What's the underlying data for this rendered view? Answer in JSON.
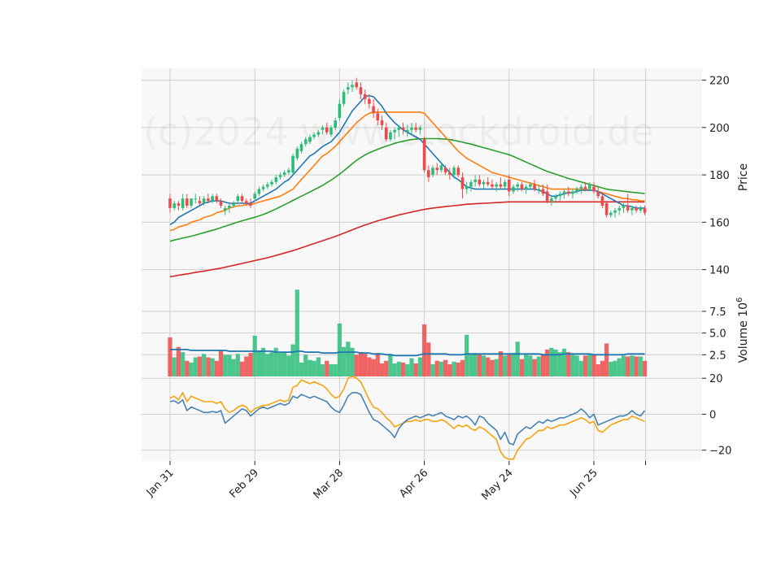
{
  "chart_data": {
    "type": "candlestick",
    "watermark": "(c)2024 www.stockdroid.de",
    "colors": {
      "up": "#2dbd7a",
      "down": "#f04a4a",
      "sma_short": "#1f77b4",
      "sma_mid": "#ff7f0e",
      "sma_long": "#2ca02c",
      "sma_longest": "#d62728",
      "volume_avg": "#1f77b4",
      "osc_main": "#4682b4",
      "osc_signal": "#f5a30f",
      "grid": "#cfcfcf",
      "panel_bg": "#f8f8f8"
    },
    "x_axis": {
      "tick_labels": [
        "Jan 31",
        "Feb 29",
        "Mar 28",
        "Apr 26",
        "May 24",
        "Jun 25"
      ],
      "tick_indices": [
        0,
        20,
        40,
        60,
        80,
        100
      ]
    },
    "price_panel": {
      "ylabel": "Price",
      "ylim": [
        133,
        225
      ],
      "ticks": [
        140,
        160,
        180,
        200,
        220
      ]
    },
    "volume_panel": {
      "ylabel": "Volume  10",
      "ylabel_exponent": "6",
      "ylim": [
        0,
        10.4
      ],
      "ticks": [
        2.5,
        5.0,
        7.5
      ],
      "tick_labels": [
        "2.5",
        "5.0",
        "7.5"
      ]
    },
    "oscillator_panel": {
      "ylim": [
        -26,
        21
      ],
      "ticks": [
        20,
        0,
        -20
      ],
      "tick_labels": [
        "20",
        "0",
        "−20"
      ]
    },
    "ohlc": [
      [
        170,
        172,
        164,
        166
      ],
      [
        166,
        169,
        165,
        168
      ],
      [
        168,
        169,
        165,
        167
      ],
      [
        166,
        172,
        165,
        170
      ],
      [
        170,
        172,
        166,
        167
      ],
      [
        167,
        170,
        166,
        170
      ],
      [
        170,
        172,
        168,
        170
      ],
      [
        169,
        171,
        167,
        168
      ],
      [
        168,
        171,
        167,
        170
      ],
      [
        170,
        172,
        168,
        169
      ],
      [
        169,
        172,
        168,
        171
      ],
      [
        171,
        172,
        168,
        169
      ],
      [
        169,
        170,
        166,
        167
      ],
      [
        165,
        167,
        163,
        166
      ],
      [
        166,
        168,
        164,
        167
      ],
      [
        167,
        169,
        166,
        168
      ],
      [
        169,
        172,
        168,
        171
      ],
      [
        171,
        172,
        168,
        169
      ],
      [
        169,
        170,
        167,
        168
      ],
      [
        168,
        170,
        166,
        167
      ],
      [
        170,
        173,
        169,
        172
      ],
      [
        172,
        175,
        171,
        174
      ],
      [
        174,
        176,
        173,
        175
      ],
      [
        175,
        177,
        174,
        176
      ],
      [
        176,
        178,
        175,
        177
      ],
      [
        177,
        180,
        176,
        179
      ],
      [
        179,
        181,
        178,
        180
      ],
      [
        180,
        182,
        179,
        181
      ],
      [
        181,
        183,
        180,
        182
      ],
      [
        181,
        189,
        180,
        188
      ],
      [
        187,
        192,
        186,
        191
      ],
      [
        190,
        194,
        189,
        193
      ],
      [
        193,
        196,
        192,
        195
      ],
      [
        194,
        197,
        193,
        196
      ],
      [
        196,
        198,
        195,
        197
      ],
      [
        197,
        199,
        196,
        198
      ],
      [
        199,
        201,
        197,
        200
      ],
      [
        200,
        202,
        197,
        198
      ],
      [
        197,
        201,
        196,
        200
      ],
      [
        200,
        204,
        199,
        203
      ],
      [
        204,
        212,
        203,
        210
      ],
      [
        210,
        216,
        209,
        215
      ],
      [
        216,
        219,
        214,
        217
      ],
      [
        217,
        220,
        215,
        218
      ],
      [
        219,
        221,
        216,
        217
      ],
      [
        217,
        219,
        212,
        214
      ],
      [
        214,
        216,
        210,
        212
      ],
      [
        212,
        214,
        208,
        210
      ],
      [
        209,
        212,
        204,
        206
      ],
      [
        206,
        208,
        201,
        203
      ],
      [
        203,
        205,
        199,
        201
      ],
      [
        200,
        202,
        194,
        195
      ],
      [
        195,
        199,
        194,
        198
      ],
      [
        198,
        200,
        195,
        199
      ],
      [
        199,
        201,
        196,
        200
      ],
      [
        200,
        202,
        197,
        199
      ],
      [
        198,
        201,
        196,
        199
      ],
      [
        199,
        202,
        197,
        200
      ],
      [
        200,
        202,
        198,
        199
      ],
      [
        199,
        201,
        197,
        200
      ],
      [
        195,
        196,
        181,
        182
      ],
      [
        182,
        184,
        177,
        179
      ],
      [
        180,
        184,
        179,
        183
      ],
      [
        183,
        185,
        180,
        182
      ],
      [
        182,
        185,
        181,
        184
      ],
      [
        183,
        184,
        180,
        181
      ],
      [
        181,
        183,
        178,
        180
      ],
      [
        180,
        184,
        179,
        183
      ],
      [
        183,
        184,
        179,
        180
      ],
      [
        179,
        181,
        170,
        174
      ],
      [
        174,
        177,
        172,
        175
      ],
      [
        175,
        178,
        173,
        177
      ],
      [
        177,
        180,
        175,
        178
      ],
      [
        178,
        180,
        175,
        176
      ],
      [
        176,
        178,
        174,
        177
      ],
      [
        177,
        179,
        175,
        176
      ],
      [
        176,
        178,
        174,
        175
      ],
      [
        175,
        177,
        173,
        176
      ],
      [
        176,
        179,
        174,
        175
      ],
      [
        175,
        178,
        174,
        177
      ],
      [
        178,
        180,
        171,
        173
      ],
      [
        173,
        176,
        172,
        175
      ],
      [
        175,
        177,
        173,
        176
      ],
      [
        176,
        177,
        173,
        174
      ],
      [
        174,
        176,
        172,
        175
      ],
      [
        175,
        177,
        174,
        176
      ],
      [
        176,
        178,
        173,
        174
      ],
      [
        174,
        176,
        172,
        174
      ],
      [
        174,
        176,
        171,
        172
      ],
      [
        173,
        176,
        168,
        169
      ],
      [
        169,
        171,
        167,
        170
      ],
      [
        170,
        172,
        168,
        171
      ],
      [
        171,
        173,
        169,
        172
      ],
      [
        172,
        174,
        170,
        173
      ],
      [
        173,
        175,
        171,
        172
      ],
      [
        172,
        174,
        170,
        173
      ],
      [
        173,
        175,
        172,
        174
      ],
      [
        174,
        176,
        172,
        175
      ],
      [
        175,
        177,
        173,
        174
      ],
      [
        174,
        177,
        173,
        176
      ],
      [
        175,
        177,
        172,
        173
      ],
      [
        173,
        175,
        170,
        171
      ],
      [
        171,
        172,
        166,
        167
      ],
      [
        168,
        169,
        162,
        163
      ],
      [
        163,
        165,
        162,
        164
      ],
      [
        164,
        166,
        162,
        165
      ],
      [
        165,
        167,
        163,
        166
      ],
      [
        166,
        168,
        164,
        167
      ],
      [
        167,
        172,
        164,
        165
      ],
      [
        165,
        167,
        163,
        166
      ],
      [
        166,
        167,
        164,
        165
      ],
      [
        165,
        167,
        164,
        166
      ],
      [
        166,
        167,
        163,
        164
      ]
    ],
    "volume": [
      4.5,
      2.2,
      3.4,
      2.8,
      1.8,
      1.6,
      2.2,
      2.3,
      2.6,
      2.2,
      2.1,
      1.8,
      3.0,
      2.5,
      2.5,
      2.0,
      2.6,
      1.7,
      2.3,
      2.7,
      4.7,
      3.0,
      3.3,
      2.6,
      2.8,
      3.3,
      2.7,
      2.8,
      2.4,
      3.7,
      10.0,
      1.6,
      2.5,
      1.9,
      1.8,
      2.2,
      1.4,
      1.8,
      1.4,
      1.4,
      6.1,
      3.4,
      4.0,
      3.3,
      2.5,
      2.8,
      2.6,
      2.2,
      2.0,
      2.7,
      1.5,
      1.8,
      2.6,
      1.5,
      1.7,
      1.6,
      1.4,
      2.1,
      1.5,
      2.2,
      6.0,
      3.9,
      1.4,
      1.8,
      1.7,
      1.9,
      1.4,
      1.7,
      1.6,
      1.9,
      4.8,
      2.6,
      2.7,
      2.6,
      2.4,
      2.2,
      1.9,
      2.0,
      2.9,
      2.4,
      2.5,
      2.7,
      4.0,
      2.0,
      2.6,
      2.4,
      2.0,
      2.3,
      2.6,
      3.1,
      3.3,
      3.1,
      2.8,
      3.2,
      2.8,
      2.5,
      2.4,
      1.8,
      2.4,
      2.5,
      2.5,
      1.4,
      1.8,
      3.8,
      1.7,
      1.8,
      2.1,
      2.4,
      2.3,
      2.4,
      2.3,
      2.3,
      1.8
    ],
    "volume_avg": [
      3.1,
      3.1,
      3.1,
      3.1,
      3.1,
      3.0,
      3.0,
      3.0,
      3.0,
      3.0,
      3.0,
      3.0,
      3.0,
      3.0,
      2.9,
      2.9,
      2.9,
      2.9,
      2.9,
      2.9,
      2.9,
      2.9,
      2.9,
      2.9,
      2.9,
      2.8,
      2.8,
      2.8,
      2.8,
      2.8,
      2.9,
      2.9,
      2.8,
      2.8,
      2.8,
      2.8,
      2.7,
      2.7,
      2.7,
      2.7,
      2.8,
      2.8,
      2.8,
      2.8,
      2.8,
      2.7,
      2.7,
      2.7,
      2.6,
      2.6,
      2.6,
      2.5,
      2.5,
      2.4,
      2.4,
      2.4,
      2.4,
      2.4,
      2.4,
      2.5,
      2.6,
      2.6,
      2.6,
      2.6,
      2.6,
      2.6,
      2.5,
      2.5,
      2.5,
      2.5,
      2.6,
      2.6,
      2.6,
      2.6,
      2.6,
      2.6,
      2.6,
      2.6,
      2.6,
      2.6,
      2.6,
      2.6,
      2.6,
      2.6,
      2.6,
      2.6,
      2.6,
      2.6,
      2.5,
      2.5,
      2.5,
      2.5,
      2.5,
      2.6,
      2.6,
      2.6,
      2.6,
      2.6,
      2.6,
      2.6,
      2.5,
      2.5,
      2.5,
      2.5,
      2.5,
      2.5,
      2.5,
      2.5,
      2.6,
      2.6,
      2.6,
      2.6,
      2.6
    ],
    "sma_short": [
      159,
      160,
      162,
      163,
      164,
      165,
      166,
      167,
      168,
      168.5,
      169,
      169,
      169,
      168.5,
      168,
      168,
      168,
      168,
      168,
      168,
      169,
      170,
      171,
      172,
      173,
      174,
      175.5,
      177,
      178,
      180,
      182,
      184,
      186,
      188,
      189,
      190.5,
      192,
      193,
      194,
      196,
      198,
      201,
      204,
      207,
      209,
      211,
      213,
      213.5,
      213,
      211,
      209,
      206,
      204,
      202,
      200.5,
      199,
      198,
      197,
      196,
      195,
      193,
      191,
      189,
      187,
      185,
      183,
      181,
      179,
      178,
      176.5,
      175,
      174.5,
      174,
      174,
      174,
      174,
      174,
      174,
      174,
      174,
      174,
      174,
      174,
      174,
      174,
      174,
      174,
      173.5,
      173,
      172,
      171,
      171,
      171.5,
      172,
      172.5,
      172.5,
      173,
      173.5,
      173.5,
      173.5,
      173.5,
      173,
      172,
      171,
      170,
      169,
      168,
      167,
      167,
      166.5,
      166,
      166,
      166
    ],
    "sma_mid": [
      156.5,
      157,
      158,
      158.5,
      159,
      160,
      160.5,
      161,
      162,
      162.5,
      163,
      164,
      164.5,
      165,
      166,
      166.5,
      167,
      167,
      167.5,
      167.5,
      168,
      168.5,
      169,
      169.5,
      170,
      170.5,
      171,
      172,
      173,
      174,
      176,
      178,
      180,
      182,
      184,
      186,
      188,
      189,
      190.5,
      192,
      194,
      196,
      198,
      200,
      202,
      203.5,
      205,
      206,
      206.5,
      206.5,
      206.5,
      206.5,
      206.5,
      206.5,
      206.5,
      206.5,
      206.5,
      206.5,
      206.5,
      206.5,
      206,
      204,
      202,
      200,
      198,
      196,
      194,
      192,
      190,
      188.5,
      187,
      186,
      185,
      184,
      183,
      182,
      181,
      180.5,
      180,
      179.5,
      179,
      178.5,
      178,
      177.5,
      177,
      176.5,
      176,
      175.5,
      175,
      174.5,
      174,
      174,
      174,
      174,
      174,
      174,
      174,
      174,
      174,
      173.5,
      173.5,
      173,
      172.5,
      172,
      171.5,
      171,
      170.5,
      170,
      170,
      169.5,
      169.5,
      169,
      169
    ],
    "sma_long": [
      152,
      152.5,
      152.9,
      153.3,
      153.7,
      154.1,
      154.6,
      155.1,
      155.6,
      156.1,
      156.6,
      157.1,
      157.7,
      158.3,
      158.9,
      159.5,
      160.1,
      160.6,
      161.1,
      161.6,
      162.1,
      162.7,
      163.3,
      164,
      164.8,
      165.6,
      166.5,
      167.4,
      168.3,
      169.2,
      170.1,
      171,
      171.9,
      172.8,
      173.7,
      174.6,
      175.6,
      176.7,
      177.8,
      179,
      180.3,
      181.7,
      183.2,
      184.7,
      186.1,
      187.3,
      188.4,
      189.3,
      190.1,
      190.8,
      191.5,
      192.1,
      192.7,
      193.3,
      193.8,
      194.2,
      194.6,
      194.9,
      195.1,
      195.2,
      195.3,
      195.3,
      195.3,
      195.3,
      195.2,
      195.1,
      194.9,
      194.6,
      194.2,
      193.8,
      193.4,
      193,
      192.5,
      192,
      191.5,
      191,
      190.5,
      190,
      189.5,
      189,
      188.5,
      187.8,
      187,
      186.2,
      185.4,
      184.6,
      183.8,
      183,
      182.2,
      181.5,
      180.9,
      180.3,
      179.7,
      179.1,
      178.5,
      178,
      177.5,
      177,
      176.5,
      176,
      175.5,
      175,
      174.5,
      174,
      173.7,
      173.5,
      173.3,
      173.1,
      172.9,
      172.7,
      172.5,
      172.3,
      172.1
    ],
    "sma_longest": [
      137,
      137.3,
      137.6,
      137.9,
      138.2,
      138.5,
      138.8,
      139.1,
      139.4,
      139.7,
      140,
      140.3,
      140.6,
      141,
      141.4,
      141.8,
      142.2,
      142.6,
      143,
      143.4,
      143.8,
      144.2,
      144.6,
      145,
      145.5,
      146,
      146.5,
      147,
      147.5,
      148,
      148.6,
      149.2,
      149.8,
      150.4,
      151,
      151.6,
      152.2,
      152.8,
      153.4,
      154,
      154.7,
      155.4,
      156.1,
      156.8,
      157.5,
      158.2,
      158.8,
      159.4,
      160,
      160.6,
      161.1,
      161.6,
      162.1,
      162.6,
      163.1,
      163.5,
      163.9,
      164.3,
      164.7,
      165.1,
      165.4,
      165.7,
      166,
      166.2,
      166.4,
      166.6,
      166.8,
      167,
      167.2,
      167.4,
      167.6,
      167.7,
      167.8,
      167.9,
      168,
      168.1,
      168.2,
      168.3,
      168.4,
      168.5,
      168.6,
      168.6,
      168.6,
      168.6,
      168.6,
      168.6,
      168.6,
      168.6,
      168.6,
      168.6,
      168.6,
      168.6,
      168.6,
      168.6,
      168.6,
      168.6,
      168.6,
      168.6,
      168.6,
      168.6,
      168.6,
      168.6,
      168.6,
      168.6,
      168.6,
      168.6,
      168.6,
      168.6,
      168.6,
      168.6,
      168.6,
      168.6,
      168.6
    ],
    "osc_main": [
      7,
      7.5,
      6,
      8,
      2,
      4,
      3,
      2,
      1,
      1,
      1.5,
      1,
      2,
      -5,
      -3,
      -1,
      1,
      3,
      2,
      -1,
      1,
      3,
      4,
      3,
      4,
      5,
      6,
      5,
      6,
      10,
      9,
      11,
      10,
      9,
      10,
      9,
      8,
      7,
      4,
      2,
      1,
      5,
      10,
      12,
      12,
      11,
      6,
      1,
      -3,
      -4,
      -6,
      -8,
      -10,
      -13,
      -8,
      -5,
      -3,
      -2,
      -1,
      -2,
      -1,
      0,
      -1,
      0,
      1,
      -1,
      -2,
      -3,
      -1,
      -2,
      -1,
      -3,
      -6,
      -1,
      -2,
      -5,
      -7,
      -9,
      -14,
      -10,
      -16,
      -17,
      -11,
      -9,
      -7,
      -8,
      -6,
      -4,
      -5,
      -3,
      -4,
      -3,
      -2,
      -2,
      -1,
      0,
      1,
      3,
      1,
      -2,
      0,
      -6,
      -5,
      -4,
      -3,
      -2,
      -1,
      -1,
      0,
      2,
      0,
      -1,
      2
    ],
    "osc_signal": [
      9,
      10,
      8,
      12,
      7,
      10,
      9,
      8,
      7,
      7,
      7,
      6,
      7,
      3,
      1,
      2,
      4,
      5,
      4,
      1,
      3,
      4,
      5,
      5,
      6,
      7,
      8,
      7,
      8,
      15,
      16,
      19,
      18,
      17,
      18,
      17,
      16,
      14,
      11,
      9,
      10,
      14,
      20,
      21,
      20,
      18,
      13,
      8,
      4,
      3,
      1,
      -2,
      -4,
      -7,
      -6,
      -5,
      -4,
      -4,
      -3,
      -4,
      -3,
      -3,
      -4,
      -4,
      -3,
      -4,
      -6,
      -8,
      -6,
      -7,
      -6,
      -8,
      -9,
      -7,
      -8,
      -10,
      -12,
      -14,
      -21,
      -24,
      -25,
      -25,
      -20,
      -17,
      -14,
      -13,
      -11,
      -9,
      -9,
      -7,
      -8,
      -7,
      -6,
      -6,
      -5,
      -4,
      -3,
      -2,
      -3,
      -5,
      -4,
      -9,
      -10,
      -8,
      -6,
      -5,
      -4,
      -3,
      -3,
      -1,
      -2,
      -3,
      -4
    ]
  }
}
